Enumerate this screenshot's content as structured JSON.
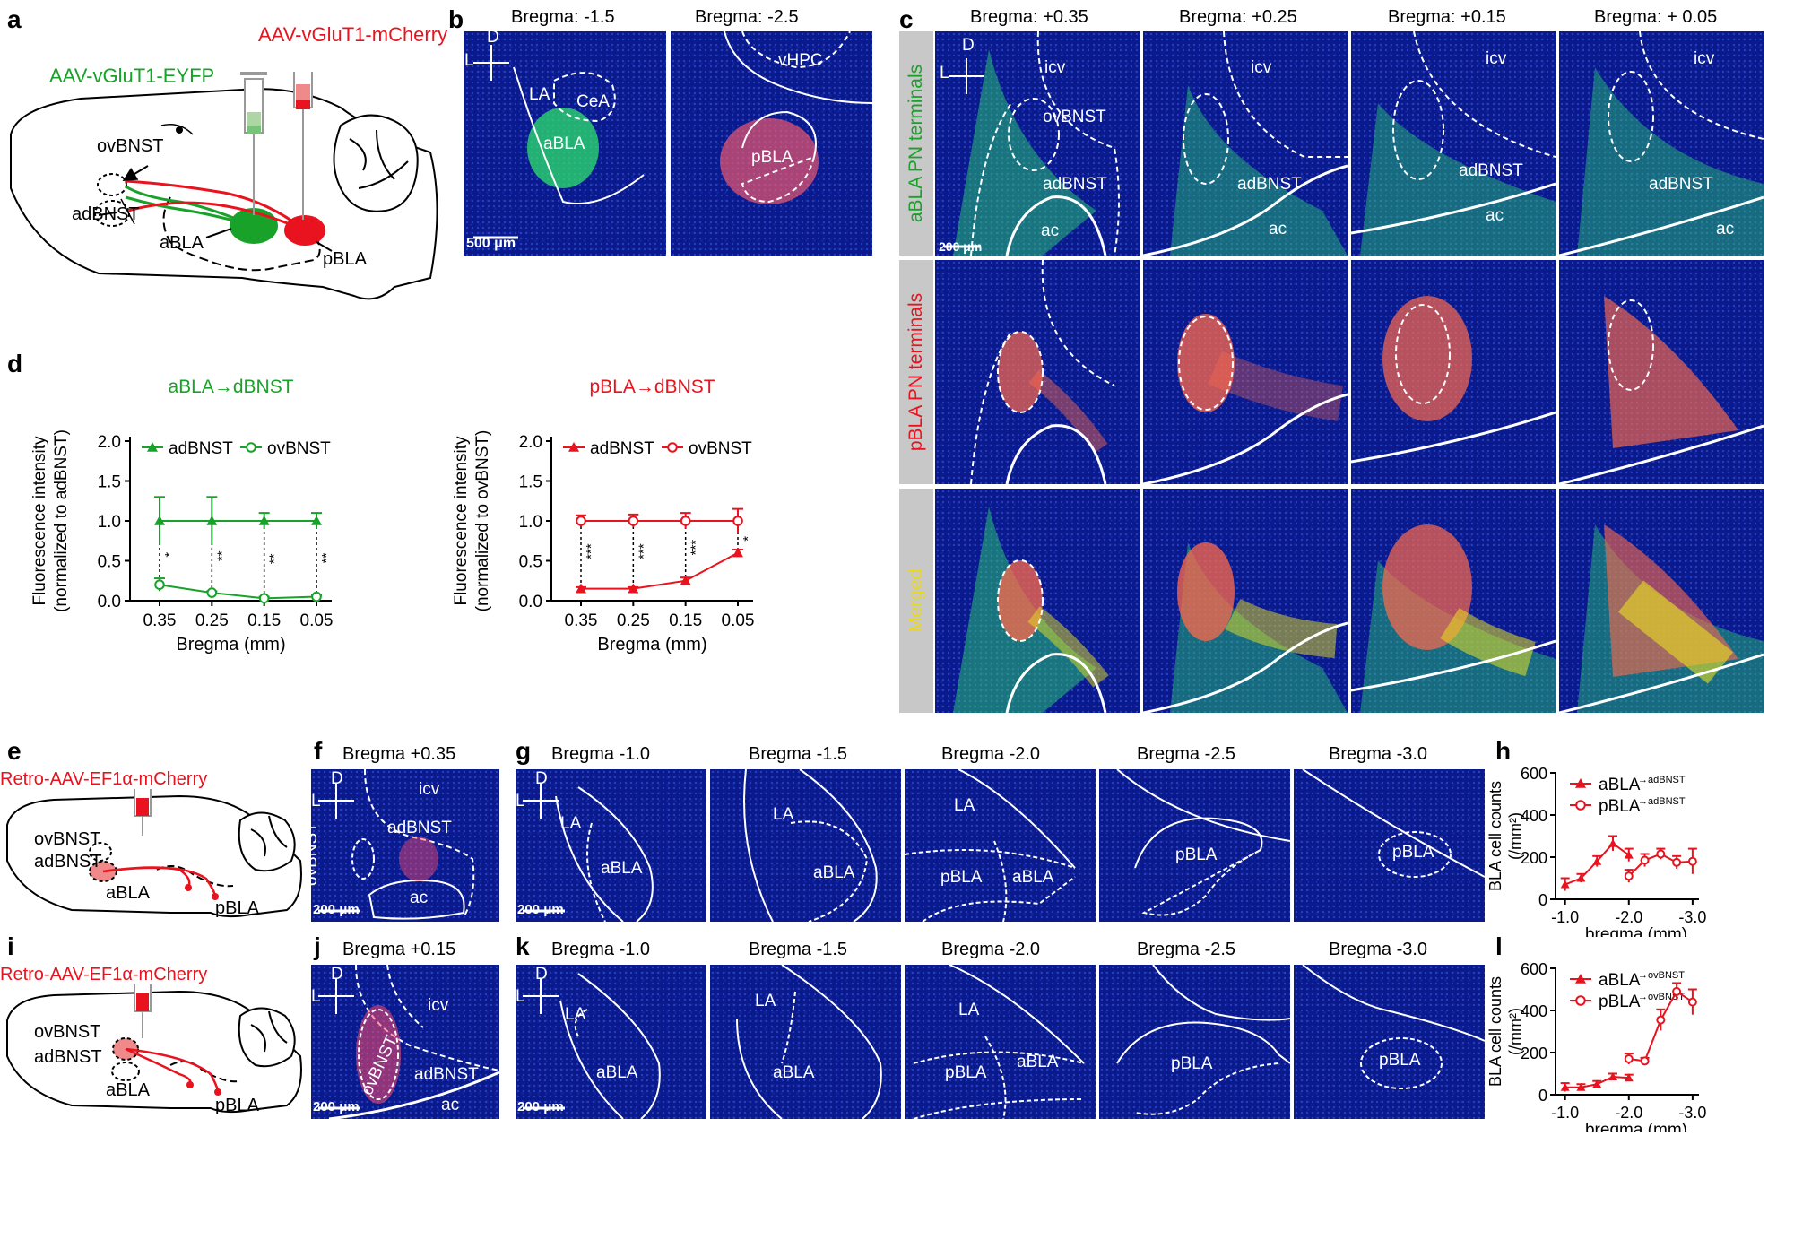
{
  "panels": {
    "a": {
      "letter": "a",
      "virus_red": "AAV-vGluT1-mCherry",
      "virus_green": "AAV-vGluT1-EYFP",
      "ovbnst": "ovBNST",
      "adbnst": "adBNST",
      "abla": "aBLA",
      "pbla": "pBLA"
    },
    "b": {
      "letter": "b",
      "bregma": [
        "Bregma: -1.5",
        "Bregma: -2.5"
      ],
      "la": "LA",
      "cea": "CeA",
      "abla": "aBLA",
      "vhpc": "vHPC",
      "pbla": "pBLA",
      "scale": "500 μm",
      "d": "D",
      "l": "L"
    },
    "c": {
      "letter": "c",
      "bregma": [
        "Bregma: +0.35",
        "Bregma: +0.25",
        "Bregma: +0.15",
        "Bregma: + 0.05"
      ],
      "rows": [
        "aBLA PN terminals",
        "pBLA PN terminals",
        "Merged"
      ],
      "icv": "icv",
      "ovbnst": "ovBNST",
      "adbnst": "adBNST",
      "ac": "ac",
      "scale": "200 μm",
      "d": "D",
      "l": "L"
    },
    "d": {
      "letter": "d"
    },
    "e": {
      "letter": "e",
      "virus": "Retro-AAV-EF1α-mCherry",
      "ovbnst": "ovBNST",
      "adbnst": "adBNST",
      "abla": "aBLA",
      "pbla": "pBLA"
    },
    "f": {
      "letter": "f",
      "bregma": "Bregma +0.35",
      "icv": "icv",
      "adbnst": "adBNST",
      "ovbnst": "ovBNST",
      "ac": "ac",
      "scale": "200 μm",
      "d": "D",
      "l": "L"
    },
    "g": {
      "letter": "g",
      "bregma": [
        "Bregma -1.0",
        "Bregma -1.5",
        "Bregma -2.0",
        "Bregma -2.5",
        "Bregma -3.0"
      ],
      "la": "LA",
      "abla": "aBLA",
      "pbla": "pBLA",
      "scale": "200 μm",
      "d": "D",
      "l": "L"
    },
    "h": {
      "letter": "h"
    },
    "i": {
      "letter": "i",
      "virus": "Retro-AAV-EF1α-mCherry",
      "ovbnst": "ovBNST",
      "adbnst": "adBNST",
      "abla": "aBLA",
      "pbla": "pBLA"
    },
    "j": {
      "letter": "j",
      "bregma": "Bregma +0.15",
      "icv": "icv",
      "adbnst": "adBNST",
      "ovbnst": "ovBNST",
      "ac": "ac",
      "scale": "200 μm",
      "d": "D",
      "l": "L"
    },
    "k": {
      "letter": "k",
      "bregma": [
        "Bregma -1.0",
        "Bregma -1.5",
        "Bregma -2.0",
        "Bregma -2.5",
        "Bregma -3.0"
      ],
      "la": "LA",
      "abla": "aBLA",
      "pbla": "pBLA",
      "scale": "200 μm",
      "d": "D",
      "l": "L"
    },
    "l": {
      "letter": "l"
    }
  },
  "colors": {
    "green": "#19a22a",
    "red": "#e8131e",
    "blue": "#0a1a8c"
  },
  "chart_data": [
    {
      "id": "d-left",
      "type": "line",
      "title": "aBLA→dBNST",
      "xlabel": "Bregma (mm)",
      "ylabel": "Fluorescence intensity",
      "ylabel2": "(normalized to adBNST)",
      "categories": [
        "0.35",
        "0.25",
        "0.15",
        "0.05"
      ],
      "ylim": [
        0,
        2.0
      ],
      "yticks": [
        "0.0",
        "0.5",
        "1.0",
        "1.5",
        "2.0"
      ],
      "series": [
        {
          "name": "adBNST",
          "marker": "triangle-filled",
          "values": [
            1.0,
            1.0,
            1.0,
            1.0
          ],
          "errors": [
            0.3,
            0.3,
            0.1,
            0.1
          ]
        },
        {
          "name": "ovBNST",
          "marker": "circle-open",
          "values": [
            0.2,
            0.1,
            0.03,
            0.05
          ],
          "errors": [
            0.08,
            0.02,
            0.02,
            0.02
          ]
        }
      ],
      "significance": [
        "*",
        "**",
        "**",
        "**"
      ],
      "color": "#19a22a"
    },
    {
      "id": "d-right",
      "type": "line",
      "title": "pBLA→dBNST",
      "xlabel": "Bregma (mm)",
      "ylabel": "Fluorescence intensity",
      "ylabel2": "(normalized to ovBNST)",
      "categories": [
        "0.35",
        "0.25",
        "0.15",
        "0.05"
      ],
      "ylim": [
        0,
        2.0
      ],
      "yticks": [
        "0.0",
        "0.5",
        "1.0",
        "1.5",
        "2.0"
      ],
      "series": [
        {
          "name": "adBNST",
          "marker": "triangle-filled",
          "values": [
            0.15,
            0.15,
            0.25,
            0.6
          ],
          "errors": [
            0.02,
            0.02,
            0.04,
            0.04
          ]
        },
        {
          "name": "ovBNST",
          "marker": "circle-open",
          "values": [
            1.0,
            1.0,
            1.0,
            1.0
          ],
          "errors": [
            0.07,
            0.08,
            0.1,
            0.15
          ]
        }
      ],
      "significance": [
        "***",
        "***",
        "***",
        "*"
      ],
      "color": "#e8131e"
    },
    {
      "id": "h",
      "type": "line",
      "xlabel": "bregma (mm)",
      "ylabel": "BLA cell counts",
      "ylabel2": "(/mm²)",
      "xlim": [
        -0.85,
        -3.1
      ],
      "ylim": [
        0,
        600
      ],
      "yticks": [
        "0",
        "200",
        "400",
        "600"
      ],
      "xticks": [
        {
          "v": -1.0,
          "l": "-1.0"
        },
        {
          "v": -2.0,
          "l": "-2.0"
        },
        {
          "v": -3.0,
          "l": "-3.0"
        }
      ],
      "series": [
        {
          "name": "aBLA",
          "sup": "→adBNST",
          "marker": "triangle-filled",
          "x": [
            -1.0,
            -1.25,
            -1.5,
            -1.75,
            -2.0
          ],
          "values": [
            70,
            100,
            180,
            265,
            210
          ],
          "errors": [
            30,
            20,
            25,
            35,
            30
          ]
        },
        {
          "name": "pBLA",
          "sup": "→adBNST",
          "marker": "circle-open",
          "x": [
            -2.0,
            -2.25,
            -2.5,
            -2.75,
            -3.0
          ],
          "values": [
            110,
            185,
            215,
            175,
            180
          ],
          "errors": [
            30,
            30,
            25,
            30,
            60
          ]
        }
      ],
      "color": "#e8131e"
    },
    {
      "id": "l",
      "type": "line",
      "xlabel": "bregma (mm)",
      "ylabel": "BLA cell counts",
      "ylabel2": "(/mm²)",
      "xlim": [
        -0.85,
        -3.1
      ],
      "ylim": [
        0,
        600
      ],
      "yticks": [
        "0",
        "200",
        "400",
        "600"
      ],
      "xticks": [
        {
          "v": -1.0,
          "l": "-1.0"
        },
        {
          "v": -2.0,
          "l": "-2.0"
        },
        {
          "v": -3.0,
          "l": "-3.0"
        }
      ],
      "series": [
        {
          "name": "aBLA",
          "sup": "→ovBNST",
          "marker": "triangle-filled",
          "x": [
            -1.0,
            -1.25,
            -1.5,
            -1.75,
            -2.0
          ],
          "values": [
            35,
            35,
            50,
            85,
            80
          ],
          "errors": [
            20,
            15,
            15,
            15,
            15
          ]
        },
        {
          "name": "pBLA",
          "sup": "→ovBNST",
          "marker": "circle-open",
          "x": [
            -2.0,
            -2.25,
            -2.5,
            -2.75,
            -3.0
          ],
          "values": [
            170,
            160,
            355,
            490,
            440
          ],
          "errors": [
            25,
            15,
            50,
            40,
            60
          ]
        }
      ],
      "color": "#e8131e"
    }
  ]
}
